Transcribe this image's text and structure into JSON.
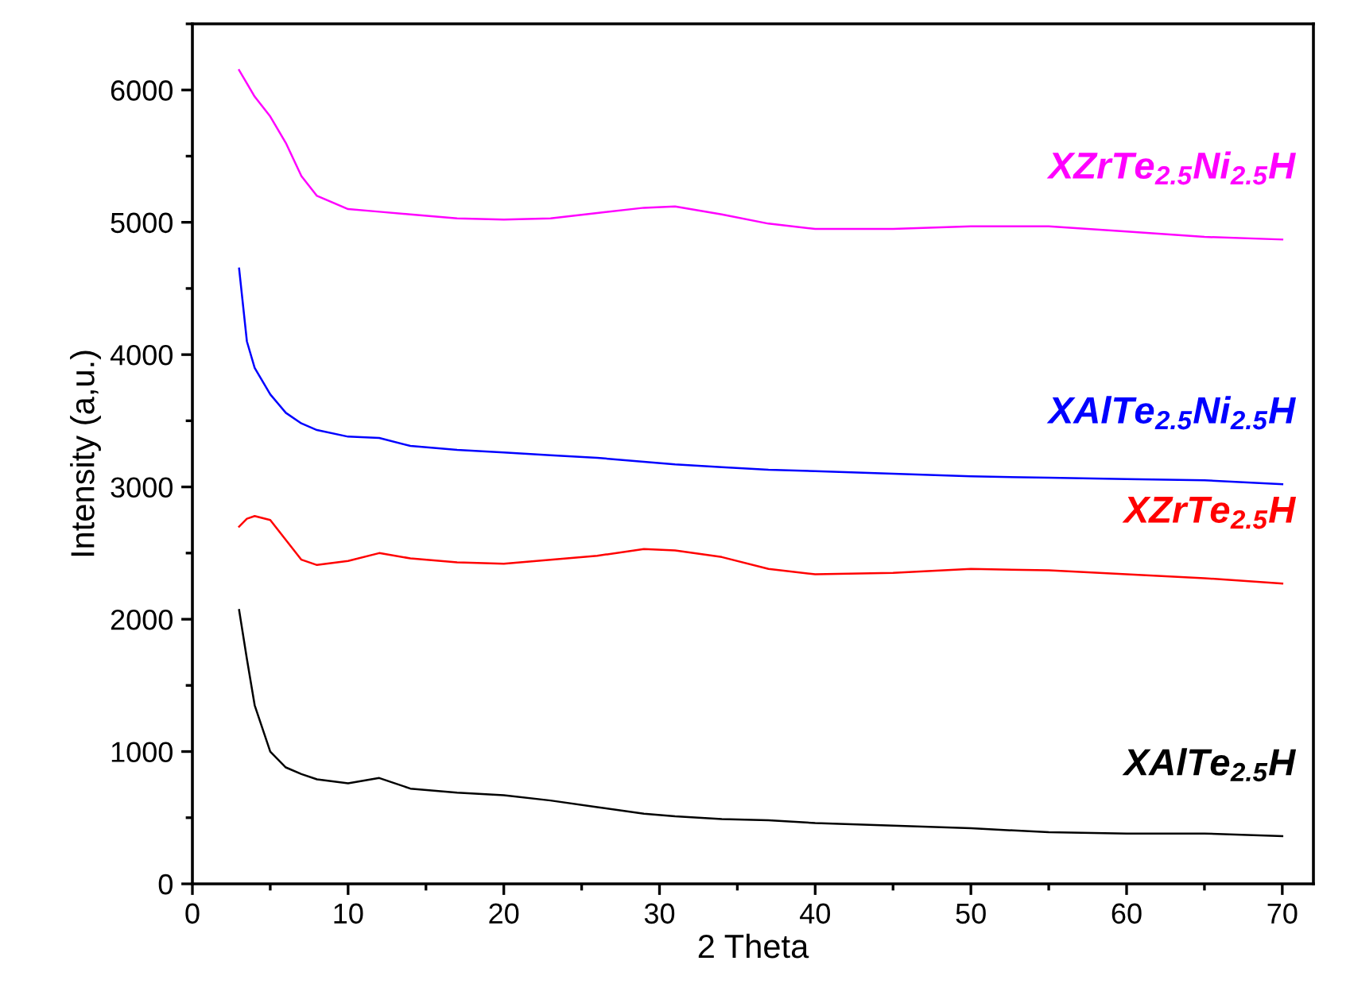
{
  "chart_data": {
    "type": "line",
    "xlabel": "2 Theta",
    "ylabel": "Intensity (a,u.)",
    "xlim": [
      0,
      72
    ],
    "ylim": [
      0,
      6500
    ],
    "xticks": [
      0,
      10,
      20,
      30,
      40,
      50,
      60,
      70
    ],
    "yticks": [
      0,
      1000,
      2000,
      3000,
      4000,
      5000,
      6000
    ],
    "x": [
      3,
      3.5,
      4,
      5,
      6,
      7,
      8,
      10,
      12,
      14,
      17,
      20,
      23,
      26,
      29,
      31,
      34,
      37,
      40,
      45,
      50,
      55,
      60,
      65,
      70
    ],
    "grid": false,
    "legend": false,
    "marker": "none",
    "line_style": "solid",
    "series": [
      {
        "name": "XAlTe$_{2.5}$H",
        "color": "#000000",
        "values": [
          2070,
          1700,
          1350,
          1000,
          880,
          830,
          790,
          760,
          800,
          720,
          690,
          670,
          630,
          580,
          530,
          510,
          490,
          480,
          460,
          440,
          420,
          390,
          380,
          380,
          360
        ]
      },
      {
        "name": "XZrTe$_{2.5}$H",
        "color": "#ff0000",
        "values": [
          2700,
          2760,
          2780,
          2750,
          2600,
          2450,
          2410,
          2440,
          2500,
          2460,
          2430,
          2420,
          2450,
          2480,
          2530,
          2520,
          2470,
          2380,
          2340,
          2350,
          2380,
          2370,
          2340,
          2310,
          2270
        ]
      },
      {
        "name": "XAlTe$_{2.5}$Ni$_{2.5}$H",
        "color": "#0000ff",
        "values": [
          4650,
          4100,
          3900,
          3700,
          3560,
          3480,
          3430,
          3380,
          3370,
          3310,
          3280,
          3260,
          3240,
          3220,
          3190,
          3170,
          3150,
          3130,
          3120,
          3100,
          3080,
          3070,
          3060,
          3050,
          3020
        ]
      },
      {
        "name": "XZrTe$_{2.5}$Ni$_{2.5}$H",
        "color": "#ff00ff",
        "values": [
          6150,
          6050,
          5950,
          5800,
          5600,
          5350,
          5200,
          5100,
          5080,
          5060,
          5030,
          5020,
          5030,
          5070,
          5110,
          5120,
          5060,
          4990,
          4950,
          4950,
          4970,
          4970,
          4930,
          4890,
          4870
        ]
      }
    ]
  }
}
